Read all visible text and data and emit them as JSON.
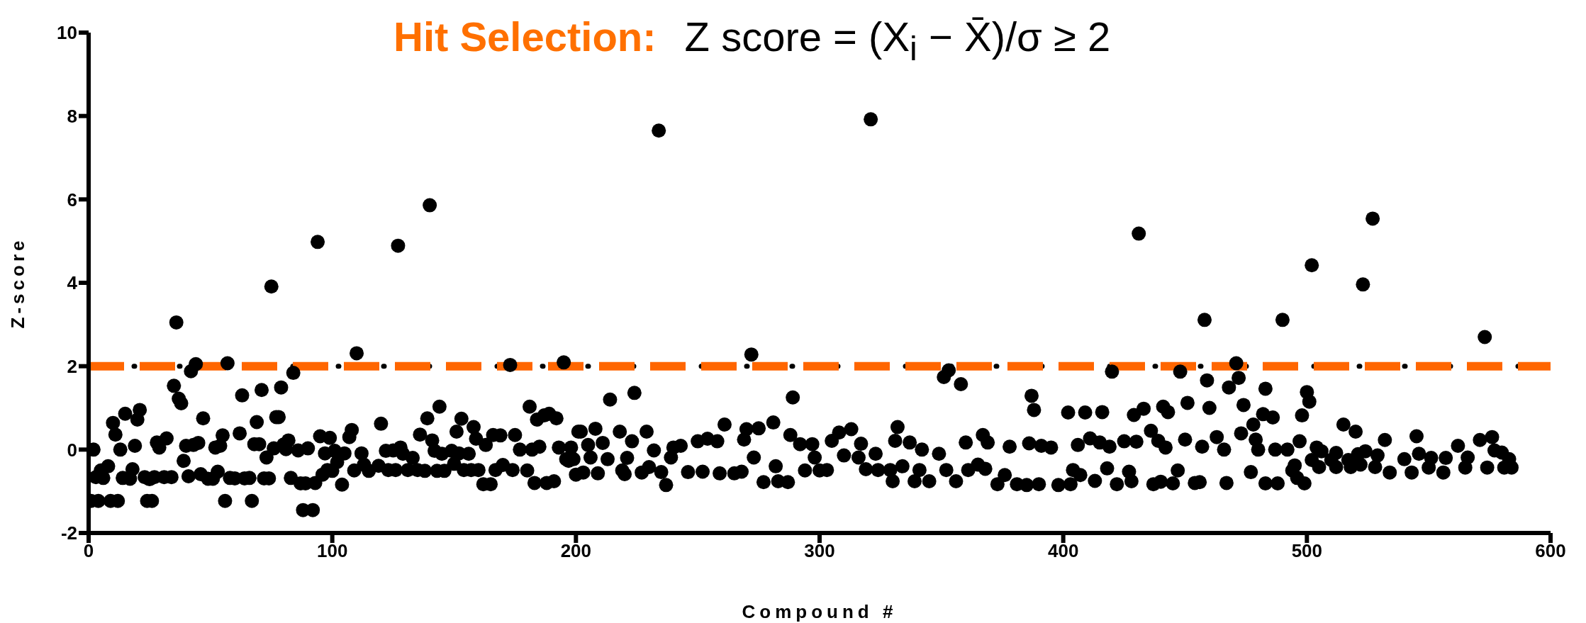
{
  "chart_data": {
    "type": "scatter",
    "title": "Hit Selection:",
    "subtitle": "Z score  = (X$_{i}$ − X̄)/σ ≥ 2",
    "xlabel": "Compound #",
    "ylabel": "Z-score",
    "xlim": [
      0,
      600
    ],
    "xticks": [
      0,
      100,
      200,
      300,
      400,
      500,
      600
    ],
    "ylim": [
      -2,
      10
    ],
    "yticks": [
      -2,
      0,
      2,
      4,
      6,
      8,
      10
    ],
    "grid": false,
    "legend": false,
    "marker": "circle",
    "ref_lines": [
      {
        "axis": "y",
        "value": 2,
        "color": "#000000",
        "line_style": "dotted"
      },
      {
        "axis": "y",
        "value": 2,
        "color": "#ff6600",
        "line_style": "dashed"
      }
    ],
    "series": [
      {
        "color": "#000000",
        "x": [
          36,
          75,
          94,
          127,
          140,
          110,
          44,
          57,
          173,
          195,
          42,
          35,
          37,
          38,
          63,
          71,
          79,
          84,
          77,
          78,
          2,
          1,
          4,
          3,
          5,
          6,
          8,
          9,
          12,
          10,
          11,
          13,
          15,
          14,
          17,
          18,
          19,
          20,
          21,
          23,
          24,
          26,
          25,
          27,
          28,
          29,
          32,
          31,
          34,
          39,
          40,
          41,
          43,
          45,
          46,
          47,
          49,
          51,
          52,
          53,
          54,
          55,
          56,
          58,
          60,
          62,
          64,
          66,
          67,
          68,
          69,
          70,
          72,
          73,
          74,
          76,
          80,
          82,
          81,
          83,
          86,
          87,
          88,
          89,
          90,
          92,
          93,
          95,
          96,
          97,
          98,
          99,
          100,
          101,
          102,
          104,
          105,
          107,
          108,
          109,
          112,
          113,
          115,
          119,
          120,
          122,
          123,
          125,
          126,
          128,
          129,
          131,
          133,
          135,
          136,
          138,
          139,
          141,
          142,
          144,
          143,
          145,
          146,
          149,
          150,
          151,
          152,
          153,
          154,
          156,
          157,
          158,
          159,
          160,
          162,
          165,
          163,
          166,
          169,
          167,
          170,
          174,
          175,
          177,
          180,
          181,
          182,
          183,
          184,
          185,
          187,
          189,
          188,
          191,
          192,
          193,
          196,
          197,
          198,
          200,
          201,
          234,
          321,
          272,
          351,
          353,
          358,
          214,
          224,
          289,
          387,
          388,
          402,
          202,
          205,
          208,
          211,
          218,
          223,
          229,
          232,
          240,
          243,
          250,
          254,
          258,
          261,
          269,
          270,
          275,
          281,
          288,
          292,
          297,
          305,
          308,
          313,
          317,
          323,
          332,
          331,
          337,
          342,
          349,
          360,
          367,
          369,
          378,
          386,
          391,
          395,
          406,
          199,
          203,
          209,
          206,
          213,
          219,
          220,
          221,
          227,
          230,
          235,
          237,
          239,
          246,
          252,
          259,
          265,
          268,
          273,
          277,
          282,
          283,
          287,
          294,
          298,
          300,
          303,
          310,
          316,
          319,
          324,
          329,
          330,
          334,
          339,
          341,
          345,
          352,
          356,
          361,
          365,
          368,
          373,
          376,
          381,
          385,
          390,
          398,
          404,
          403,
          431,
          458,
          490,
          502,
          523,
          527,
          573,
          471,
          420,
          448,
          459,
          472,
          468,
          483,
          500,
          501,
          498,
          486,
          482,
          478,
          473,
          474,
          460,
          451,
          441,
          443,
          433,
          429,
          416,
          409,
          436,
          515,
          520,
          532,
          545,
          571,
          576,
          562,
          411,
          415,
          419,
          425,
          430,
          439,
          442,
          450,
          457,
          463,
          466,
          479,
          480,
          487,
          492,
          497,
          504,
          506,
          512,
          521,
          524,
          529,
          540,
          546,
          551,
          557,
          566,
          577,
          580,
          583,
          407,
          413,
          418,
          422,
          427,
          428,
          437,
          440,
          445,
          447,
          454,
          456,
          467,
          477,
          483,
          488,
          494,
          496,
          495,
          499,
          502,
          505,
          510,
          512,
          517,
          518,
          522,
          528,
          534,
          543,
          550,
          556,
          565,
          574,
          581,
          584
        ],
        "values": [
          3.05,
          3.91,
          4.98,
          4.89,
          5.86,
          2.31,
          2.05,
          2.07,
          2.03,
          2.09,
          1.88,
          1.53,
          1.22,
          1.11,
          1.3,
          1.43,
          1.49,
          1.84,
          0.78,
          0.78,
          0,
          -1.23,
          -1.23,
          -0.66,
          -0.5,
          -0.68,
          -0.4,
          -1.23,
          -1.23,
          0.64,
          0.36,
          0,
          0.86,
          -0.68,
          -0.7,
          -0.47,
          0.09,
          0.72,
          0.95,
          -0.66,
          -1.23,
          -1.23,
          -0.71,
          -0.66,
          0.17,
          0.05,
          0.27,
          -0.66,
          -0.66,
          -0.27,
          0.09,
          -0.64,
          0.11,
          0.16,
          -0.59,
          0.75,
          -0.7,
          -0.7,
          0.05,
          -0.53,
          0.09,
          0.34,
          -1.23,
          -0.68,
          -0.69,
          0.39,
          -0.69,
          -0.68,
          -1.23,
          0.13,
          0.66,
          0.13,
          -0.69,
          -0.19,
          -0.69,
          0.03,
          0.12,
          0.22,
          0.01,
          -0.68,
          -0.02,
          -0.81,
          -1.45,
          -0.81,
          0.03,
          -1.45,
          -0.8,
          0.32,
          -0.6,
          -0.09,
          -0.49,
          0.28,
          -0.51,
          -0.03,
          -0.3,
          -0.84,
          -0.09,
          0.3,
          0.47,
          -0.5,
          -0.09,
          -0.36,
          -0.51,
          -0.39,
          0.62,
          -0.03,
          -0.49,
          -0.02,
          -0.49,
          0.05,
          -0.1,
          -0.49,
          -0.2,
          -0.49,
          0.36,
          -0.51,
          0.75,
          0.22,
          -0.03,
          1.03,
          -0.51,
          -0.1,
          -0.51,
          -0.03,
          -0.34,
          0.43,
          -0.09,
          0.74,
          -0.49,
          -0.1,
          -0.49,
          0.54,
          0.26,
          -0.49,
          -0.83,
          -0.83,
          0.11,
          0.35,
          0.34,
          -0.49,
          -0.37,
          -0.49,
          0.35,
          0,
          -0.5,
          1.03,
          0,
          -0.8,
          0.72,
          0.07,
          0.82,
          0.86,
          -0.8,
          -0.76,
          0.75,
          0.05,
          -0.23,
          -0.27,
          0.05,
          -0.6,
          0.43,
          7.65,
          7.92,
          2.28,
          1.74,
          1.9,
          1.57,
          1.2,
          1.36,
          1.25,
          1.29,
          0.95,
          0.89,
          0.43,
          0.11,
          0.5,
          0.16,
          0.43,
          0.2,
          0.43,
          -0.02,
          0.05,
          0.09,
          0.2,
          0.26,
          0.2,
          0.6,
          0.24,
          0.49,
          0.51,
          0.65,
          0.35,
          0.13,
          0.13,
          0.21,
          0.41,
          0.49,
          0.14,
          -0.1,
          0.54,
          0.21,
          0.17,
          0,
          -0.1,
          0.17,
          0.35,
          0.17,
          0.07,
          0.15,
          0.09,
          0.05,
          0.11,
          -0.23,
          -0.55,
          -0.57,
          -0.19,
          -0.23,
          -0.5,
          -0.59,
          -0.2,
          -0.55,
          -0.42,
          -0.54,
          -0.85,
          -0.19,
          -0.54,
          -0.53,
          -0.57,
          -0.57,
          -0.53,
          -0.19,
          -0.78,
          -0.4,
          -0.76,
          -0.78,
          -0.5,
          -0.19,
          -0.5,
          -0.49,
          -0.14,
          -0.19,
          -0.47,
          -0.49,
          -0.49,
          -0.76,
          -0.4,
          -0.76,
          -0.49,
          -0.76,
          -0.49,
          -0.76,
          -0.49,
          -0.36,
          -0.46,
          -0.83,
          -0.61,
          -0.83,
          -0.85,
          -0.83,
          -0.85,
          -0.49,
          -0.83,
          5.18,
          3.11,
          3.11,
          4.42,
          3.96,
          5.54,
          2.7,
          2.07,
          1.87,
          1.87,
          1.66,
          1.72,
          1.49,
          1.46,
          1.38,
          1.15,
          0.82,
          0.77,
          0.85,
          0.6,
          0.39,
          1.07,
          1,
          1.12,
          1.03,
          0.9,
          0.98,
          0.83,
          0.9,
          0.89,
          0.45,
          0.6,
          0.43,
          0.23,
          0.32,
          0.23,
          0.3,
          0.09,
          0.27,
          0.17,
          0.07,
          0.2,
          0.19,
          0.21,
          0.05,
          0.24,
          0.07,
          0.3,
          0,
          0.24,
          0,
          0,
          0,
          0.2,
          0.05,
          -0.04,
          -0.08,
          -0.11,
          -0.04,
          -0.14,
          -0.23,
          -0.1,
          -0.2,
          -0.2,
          -0.19,
          -0.02,
          -0.07,
          -0.23,
          -0.61,
          -0.75,
          -0.45,
          -0.83,
          -0.53,
          -0.76,
          -0.83,
          -0.77,
          -0.81,
          -0.5,
          -0.8,
          -0.78,
          -0.8,
          -0.54,
          -0.81,
          -0.81,
          -0.5,
          -0.68,
          -0.38,
          -0.81,
          -0.25,
          -0.42,
          -0.25,
          -0.42,
          -0.25,
          -0.42,
          -0.36,
          -0.42,
          -0.55,
          -0.55,
          -0.43,
          -0.55,
          -0.43,
          -0.43,
          -0.43,
          -0.43
        ]
      }
    ]
  }
}
